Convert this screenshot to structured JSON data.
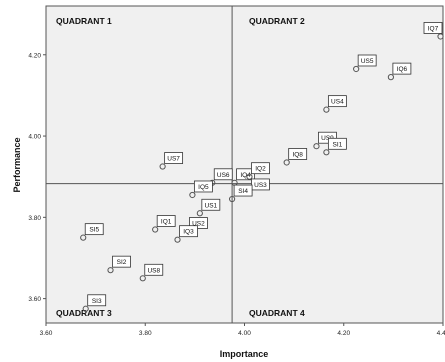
{
  "chart_data": {
    "type": "scatter",
    "xlabel": "Importance",
    "ylabel": "Performance",
    "xlim": [
      3.6,
      4.4
    ],
    "ylim": [
      3.54,
      4.32
    ],
    "x_ticks": [
      "3.60",
      "3.80",
      "4.00",
      "4.20",
      "4.40"
    ],
    "y_ticks": [
      "3.60",
      "3.80",
      "4.00",
      "4.20"
    ],
    "x_tick_values": [
      3.6,
      3.8,
      4.0,
      4.2,
      4.4
    ],
    "y_tick_values": [
      3.6,
      3.8,
      4.0,
      4.2
    ],
    "reference_lines": {
      "x": 3.975,
      "y": 3.883
    },
    "quadrants": [
      "QUADRANT 1",
      "QUADRANT 2",
      "QUADRANT 3",
      "QUADRANT 4"
    ],
    "grid": false,
    "legend": "none",
    "points": [
      {
        "label": "IQ7",
        "x": 4.395,
        "y": 4.245
      },
      {
        "label": "US5",
        "x": 4.225,
        "y": 4.165
      },
      {
        "label": "IQ6",
        "x": 4.295,
        "y": 4.145
      },
      {
        "label": "US4",
        "x": 4.165,
        "y": 4.065
      },
      {
        "label": "US9",
        "x": 4.145,
        "y": 3.975
      },
      {
        "label": "IQ8",
        "x": 4.085,
        "y": 3.935
      },
      {
        "label": "SI1",
        "x": 4.165,
        "y": 3.96
      },
      {
        "label": "US7",
        "x": 3.835,
        "y": 3.925
      },
      {
        "label": "US6",
        "x": 3.935,
        "y": 3.885
      },
      {
        "label": "IQ4",
        "x": 3.98,
        "y": 3.885
      },
      {
        "label": "IQ2",
        "x": 4.01,
        "y": 3.9
      },
      {
        "label": "US3",
        "x": 4.01,
        "y": 3.86
      },
      {
        "label": "SI4",
        "x": 3.975,
        "y": 3.845
      },
      {
        "label": "IQ5",
        "x": 3.895,
        "y": 3.855
      },
      {
        "label": "US1",
        "x": 3.91,
        "y": 3.81
      },
      {
        "label": "IQ1",
        "x": 3.82,
        "y": 3.77
      },
      {
        "label": "US2",
        "x": 3.885,
        "y": 3.765
      },
      {
        "label": "IQ3",
        "x": 3.865,
        "y": 3.745
      },
      {
        "label": "SI5",
        "x": 3.675,
        "y": 3.75
      },
      {
        "label": "SI2",
        "x": 3.73,
        "y": 3.67
      },
      {
        "label": "US8",
        "x": 3.795,
        "y": 3.65
      },
      {
        "label": "SI3",
        "x": 3.68,
        "y": 3.575
      }
    ]
  },
  "colors": {
    "plot_background": "#f0f0f0",
    "border": "#555555",
    "reference_line": "#555555",
    "marker": "#555555",
    "label_box": "#333333"
  }
}
